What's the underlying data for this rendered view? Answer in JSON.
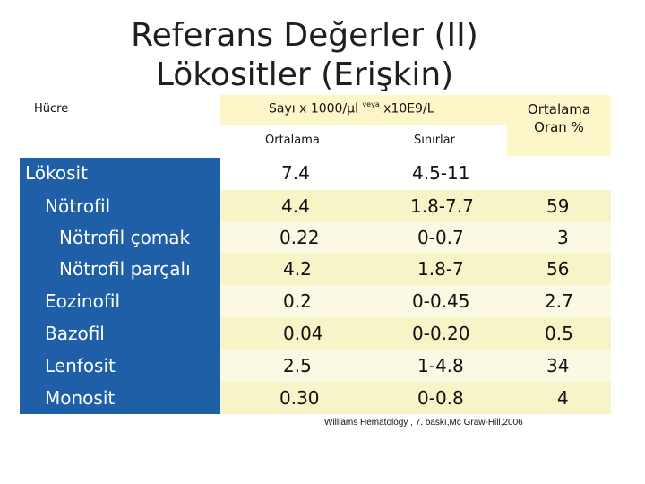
{
  "title": {
    "line1": "Referans Değerler (II)",
    "line2": "Lökositler (Erişkin)"
  },
  "header": {
    "cell_label": "Hücre",
    "count_main": "Sayı x 1000/µl",
    "count_sup": "veya",
    "count_alt": "x10E9/L",
    "avg_label": "Ortalama",
    "range_label": "Sınırlar",
    "ratio_label_1": "Ortalama",
    "ratio_label_2": "Oran %"
  },
  "rows": [
    {
      "cell": "Lökosit",
      "mean": "7.4",
      "range": "4.5-11",
      "ratio": ""
    },
    {
      "cell": "Nötrofil",
      "mean": "4.4",
      "range": "1.8-7.7",
      "ratio": "59"
    },
    {
      "cell": "Nötrofil çomak",
      "mean": "0.22",
      "range": "0-0.7",
      "ratio": "3"
    },
    {
      "cell": "Nötrofil parçalı",
      "mean": "4.2",
      "range": "1.8-7",
      "ratio": "56"
    },
    {
      "cell": "Eozinofil",
      "mean": "0.2",
      "range": "0-0.45",
      "ratio": "2.7"
    },
    {
      "cell": "Bazofil",
      "mean": "0.04",
      "range": "0-0.20",
      "ratio": "0.5"
    },
    {
      "cell": "Lenfosit",
      "mean": "2.5",
      "range": "1-4.8",
      "ratio": "34"
    },
    {
      "cell": "Monosit",
      "mean": "0.30",
      "range": "0-0.8",
      "ratio": "4"
    }
  ],
  "source": "Williams Hematology , 7. baskı,Mc Graw-Hill,2006",
  "colors": {
    "label_column": "#1f5fa8",
    "header_fill": "#fdf6c8",
    "row_fill": "#f7f4c8"
  }
}
